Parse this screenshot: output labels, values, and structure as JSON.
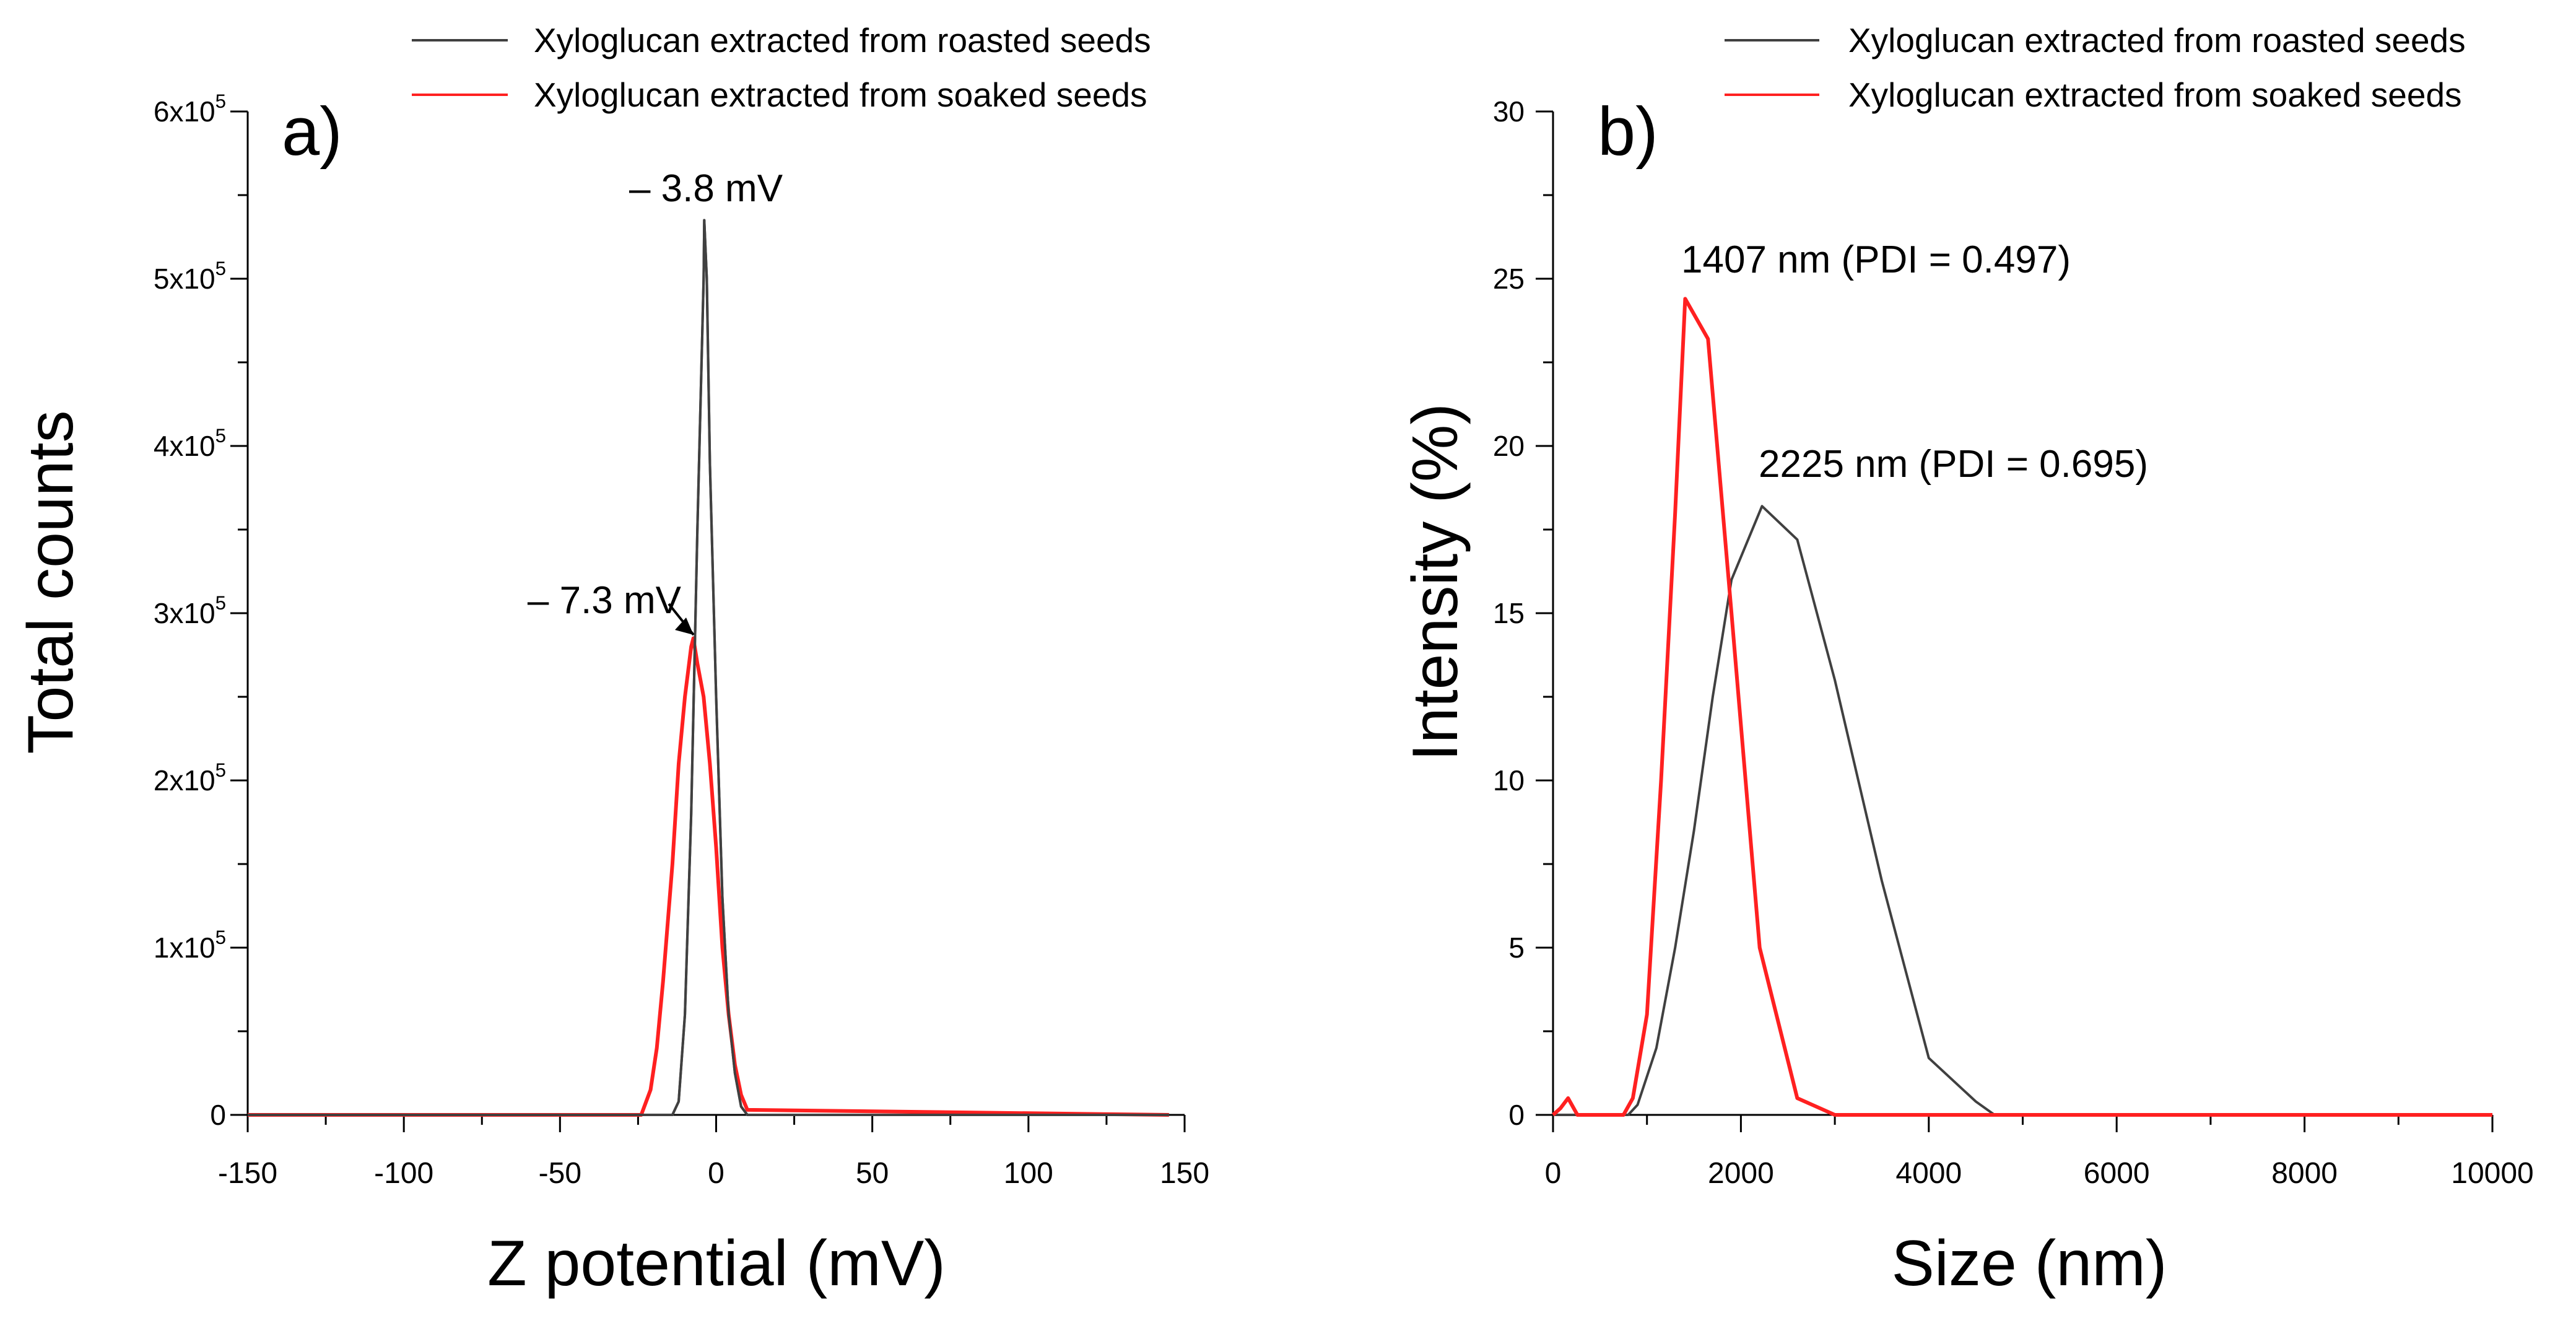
{
  "chart_data": [
    {
      "type": "line",
      "panel": "a)",
      "xlabel": "Z potential (mV)",
      "ylabel": "Total counts",
      "xlim": [
        -150,
        150
      ],
      "ylim": [
        0,
        600000
      ],
      "xticks": [
        -150,
        -100,
        -50,
        0,
        50,
        100,
        150
      ],
      "xtick_labels": [
        "-150",
        "-100",
        "-50",
        "0",
        "50",
        "100",
        "150"
      ],
      "yticks": [
        0,
        100000,
        200000,
        300000,
        400000,
        500000,
        600000
      ],
      "ytick_labels": [
        {
          "base": "0",
          "exp": ""
        },
        {
          "base": "1x10",
          "exp": "5"
        },
        {
          "base": "2x10",
          "exp": "5"
        },
        {
          "base": "3x10",
          "exp": "5"
        },
        {
          "base": "4x10",
          "exp": "5"
        },
        {
          "base": "5x10",
          "exp": "5"
        },
        {
          "base": "6x10",
          "exp": "5"
        }
      ],
      "grid": false,
      "legend_position": "top-right, above plot",
      "series": [
        {
          "name": "Xyloglucan extracted from roasted seeds",
          "color": "#404040",
          "x": [
            -150,
            -14,
            -12,
            -10,
            -8,
            -6,
            -4,
            -3.8,
            -3,
            -2,
            0,
            2,
            4,
            6,
            8,
            10,
            145
          ],
          "y": [
            0,
            0,
            8000,
            60000,
            180000,
            350000,
            500000,
            535000,
            500000,
            390000,
            250000,
            130000,
            60000,
            25000,
            5000,
            0,
            0
          ]
        },
        {
          "name": "Xyloglucan extracted from soaked seeds",
          "color": "#ff2020",
          "x": [
            -150,
            -24,
            -21,
            -19,
            -17,
            -14,
            -12,
            -10,
            -8,
            -7.3,
            -6,
            -4,
            -2,
            0,
            2,
            4,
            6,
            8,
            10,
            145
          ],
          "y": [
            0,
            0,
            15000,
            40000,
            80000,
            150000,
            210000,
            250000,
            280000,
            285000,
            270000,
            250000,
            210000,
            160000,
            100000,
            60000,
            30000,
            12000,
            3000,
            0
          ]
        }
      ],
      "annotations": [
        {
          "text": "– 3.8 mV",
          "x": -3.8,
          "y": 535000
        },
        {
          "text": "– 7.3 mV",
          "x": -7.3,
          "y": 285000,
          "arrow": true
        }
      ]
    },
    {
      "type": "line",
      "panel": "b)",
      "xlabel": "Size (nm)",
      "ylabel": "Intensity (%)",
      "xlim": [
        0,
        10000
      ],
      "ylim": [
        0,
        30
      ],
      "xticks": [
        0,
        2000,
        4000,
        6000,
        8000,
        10000
      ],
      "xtick_labels": [
        "0",
        "2000",
        "4000",
        "6000",
        "8000",
        "10000"
      ],
      "yticks": [
        0,
        5,
        10,
        15,
        20,
        25,
        30
      ],
      "ytick_labels": [
        "0",
        "5",
        "10",
        "15",
        "20",
        "25",
        "30"
      ],
      "grid": false,
      "legend_position": "top-right, above plot",
      "series": [
        {
          "name": "Xyloglucan extracted from roasted seeds",
          "color": "#404040",
          "x": [
            0,
            150,
            300,
            800,
            900,
            1100,
            1300,
            1500,
            1700,
            1900,
            2225,
            2600,
            3000,
            3500,
            4000,
            4500,
            4700,
            10000
          ],
          "y": [
            0,
            0,
            0,
            0,
            0.3,
            2,
            5,
            8.5,
            12.5,
            16,
            18.2,
            17.2,
            13,
            7,
            1.7,
            0.4,
            0,
            0
          ]
        },
        {
          "name": "Xyloglucan extracted from soaked seeds",
          "color": "#ff2020",
          "x": [
            0,
            80,
            160,
            260,
            400,
            750,
            850,
            1000,
            1150,
            1300,
            1407,
            1650,
            1900,
            2200,
            2600,
            3000,
            10000
          ],
          "y": [
            0,
            0.2,
            0.5,
            0,
            0,
            0,
            0.5,
            3,
            10,
            18,
            24.4,
            23.2,
            15,
            5,
            0.5,
            0,
            0
          ]
        }
      ],
      "annotations": [
        {
          "text": "1407 nm (PDI = 0.497)",
          "x": 1407,
          "y": 24.4
        },
        {
          "text": "2225 nm (PDI = 0.695)",
          "x": 2225,
          "y": 18.2
        }
      ]
    }
  ]
}
